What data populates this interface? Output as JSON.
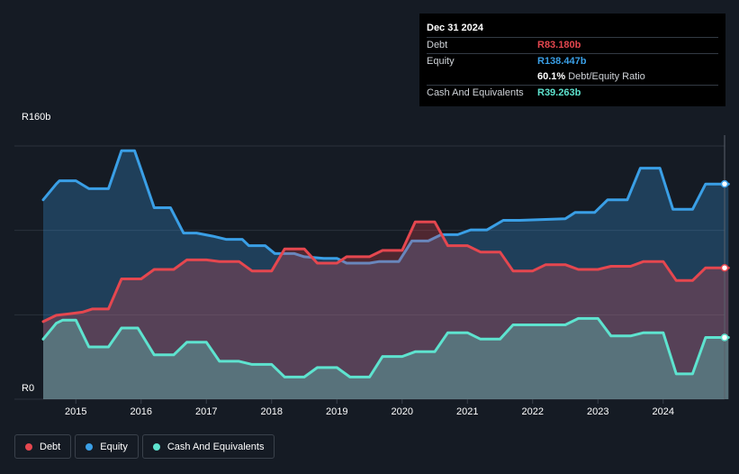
{
  "tooltip": {
    "date": "Dec 31 2024",
    "rows": [
      {
        "label": "Debt",
        "value": "R83.180b",
        "color": "#e5474f"
      },
      {
        "label": "Equity",
        "value": "R138.447b",
        "color": "#3a9fe6"
      },
      {
        "label": "",
        "value": "60.1%",
        "suffix": "Debt/Equity Ratio",
        "color": "#ffffff"
      },
      {
        "label": "Cash And Equivalents",
        "value": "R39.263b",
        "color": "#5ee3cf"
      }
    ]
  },
  "legend": [
    {
      "label": "Debt",
      "color": "#e5474f"
    },
    {
      "label": "Equity",
      "color": "#3a9fe6"
    },
    {
      "label": "Cash And Equivalents",
      "color": "#5ee3cf"
    }
  ],
  "chart_data": {
    "type": "area",
    "ylim": [
      0,
      160
    ],
    "y_tick_labels": {
      "top": "R160b",
      "bottom": "R0"
    },
    "x_ticks": [
      2015,
      2016,
      2017,
      2018,
      2019,
      2020,
      2021,
      2022,
      2023,
      2024
    ],
    "x_range": [
      2014.5,
      2025.0
    ],
    "grid": true,
    "series": [
      {
        "name": "Equity",
        "color": "#3a9fe6",
        "points": [
          [
            2014.5,
            126
          ],
          [
            2014.7,
            136
          ],
          [
            2014.75,
            138
          ],
          [
            2015.0,
            138
          ],
          [
            2015.2,
            133
          ],
          [
            2015.5,
            133
          ],
          [
            2015.7,
            157
          ],
          [
            2015.9,
            157
          ],
          [
            2016.0,
            145
          ],
          [
            2016.2,
            121
          ],
          [
            2016.45,
            121
          ],
          [
            2016.65,
            105
          ],
          [
            2016.85,
            105
          ],
          [
            2017.1,
            103
          ],
          [
            2017.3,
            101
          ],
          [
            2017.55,
            101
          ],
          [
            2017.65,
            97
          ],
          [
            2017.9,
            97
          ],
          [
            2018.05,
            92
          ],
          [
            2018.35,
            92
          ],
          [
            2018.5,
            90
          ],
          [
            2018.8,
            89
          ],
          [
            2019.0,
            89
          ],
          [
            2019.15,
            86
          ],
          [
            2019.5,
            86
          ],
          [
            2019.65,
            87
          ],
          [
            2019.95,
            87
          ],
          [
            2020.15,
            100
          ],
          [
            2020.4,
            100
          ],
          [
            2020.6,
            104
          ],
          [
            2020.85,
            104
          ],
          [
            2021.05,
            107
          ],
          [
            2021.3,
            107
          ],
          [
            2021.55,
            113
          ],
          [
            2021.8,
            113
          ],
          [
            2022.5,
            114
          ],
          [
            2022.65,
            118
          ],
          [
            2022.95,
            118
          ],
          [
            2023.15,
            126
          ],
          [
            2023.45,
            126
          ],
          [
            2023.65,
            146
          ],
          [
            2023.95,
            146
          ],
          [
            2024.15,
            120
          ],
          [
            2024.45,
            120
          ],
          [
            2024.65,
            136
          ],
          [
            2025.0,
            136
          ]
        ]
      },
      {
        "name": "Debt",
        "color": "#e5474f",
        "points": [
          [
            2014.5,
            49
          ],
          [
            2014.7,
            53
          ],
          [
            2014.9,
            54
          ],
          [
            2015.1,
            55
          ],
          [
            2015.25,
            57
          ],
          [
            2015.5,
            57
          ],
          [
            2015.7,
            76
          ],
          [
            2016.0,
            76
          ],
          [
            2016.2,
            82
          ],
          [
            2016.5,
            82
          ],
          [
            2016.7,
            88
          ],
          [
            2017.0,
            88
          ],
          [
            2017.2,
            87
          ],
          [
            2017.5,
            87
          ],
          [
            2017.7,
            81
          ],
          [
            2018.0,
            81
          ],
          [
            2018.2,
            95
          ],
          [
            2018.5,
            95
          ],
          [
            2018.7,
            86
          ],
          [
            2019.0,
            86
          ],
          [
            2019.15,
            90
          ],
          [
            2019.5,
            90
          ],
          [
            2019.7,
            94
          ],
          [
            2020.0,
            94
          ],
          [
            2020.2,
            112
          ],
          [
            2020.5,
            112
          ],
          [
            2020.7,
            97
          ],
          [
            2021.0,
            97
          ],
          [
            2021.2,
            93
          ],
          [
            2021.5,
            93
          ],
          [
            2021.7,
            81
          ],
          [
            2022.0,
            81
          ],
          [
            2022.2,
            85
          ],
          [
            2022.5,
            85
          ],
          [
            2022.7,
            82
          ],
          [
            2023.0,
            82
          ],
          [
            2023.2,
            84
          ],
          [
            2023.5,
            84
          ],
          [
            2023.7,
            87
          ],
          [
            2024.0,
            87
          ],
          [
            2024.2,
            75
          ],
          [
            2024.45,
            75
          ],
          [
            2024.65,
            83
          ],
          [
            2025.0,
            83
          ]
        ]
      },
      {
        "name": "Cash And Equivalents",
        "color": "#5ee3cf",
        "points": [
          [
            2014.5,
            38
          ],
          [
            2014.7,
            48
          ],
          [
            2014.8,
            50
          ],
          [
            2015.0,
            50
          ],
          [
            2015.2,
            33
          ],
          [
            2015.5,
            33
          ],
          [
            2015.7,
            45
          ],
          [
            2015.95,
            45
          ],
          [
            2016.2,
            28
          ],
          [
            2016.5,
            28
          ],
          [
            2016.7,
            36
          ],
          [
            2017.0,
            36
          ],
          [
            2017.2,
            24
          ],
          [
            2017.5,
            24
          ],
          [
            2017.7,
            22
          ],
          [
            2018.0,
            22
          ],
          [
            2018.2,
            14
          ],
          [
            2018.5,
            14
          ],
          [
            2018.7,
            20
          ],
          [
            2019.0,
            20
          ],
          [
            2019.2,
            14
          ],
          [
            2019.5,
            14
          ],
          [
            2019.7,
            27
          ],
          [
            2020.0,
            27
          ],
          [
            2020.2,
            30
          ],
          [
            2020.5,
            30
          ],
          [
            2020.7,
            42
          ],
          [
            2021.0,
            42
          ],
          [
            2021.2,
            38
          ],
          [
            2021.5,
            38
          ],
          [
            2021.7,
            47
          ],
          [
            2022.0,
            47
          ],
          [
            2022.5,
            47
          ],
          [
            2022.7,
            51
          ],
          [
            2023.0,
            51
          ],
          [
            2023.2,
            40
          ],
          [
            2023.5,
            40
          ],
          [
            2023.7,
            42
          ],
          [
            2024.0,
            42
          ],
          [
            2024.2,
            16
          ],
          [
            2024.45,
            16
          ],
          [
            2024.65,
            39
          ],
          [
            2025.0,
            39
          ]
        ]
      }
    ]
  }
}
